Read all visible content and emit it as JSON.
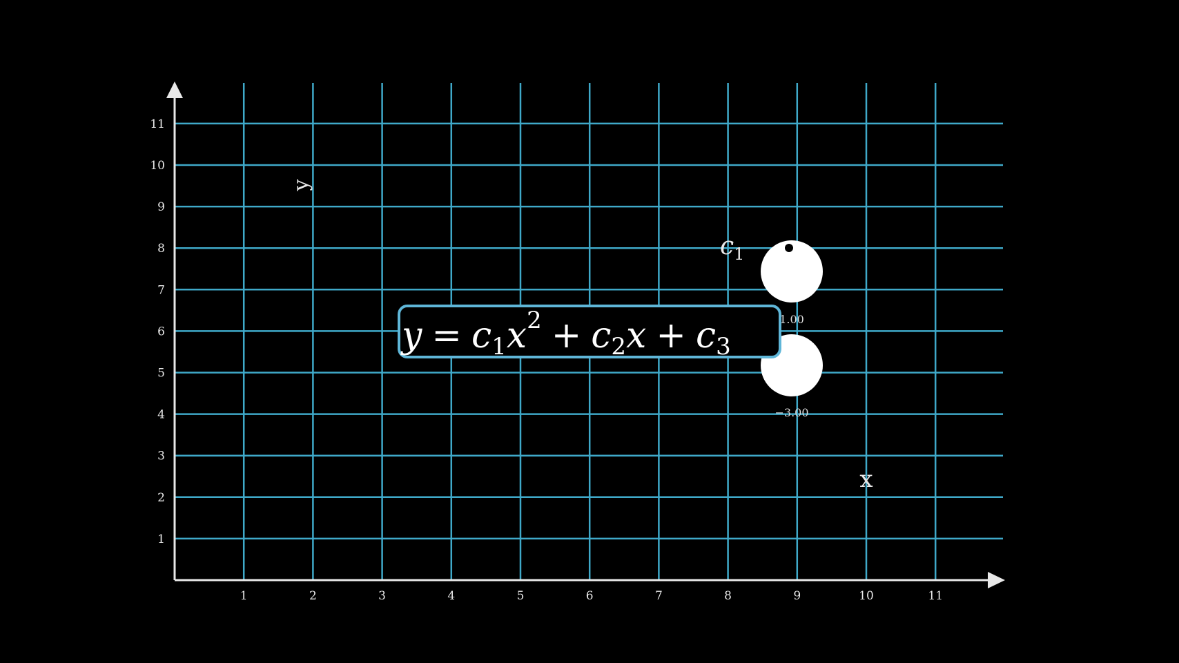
{
  "axes": {
    "x_label": "x",
    "y_label": "y",
    "x_ticks": [
      "1",
      "2",
      "3",
      "4",
      "5",
      "6",
      "7",
      "8",
      "9",
      "10",
      "11"
    ],
    "y_ticks": [
      "1",
      "2",
      "3",
      "4",
      "5",
      "6",
      "7",
      "8",
      "9",
      "10",
      "11"
    ]
  },
  "equation": {
    "y": "y",
    "equals": "=",
    "c1": "c",
    "c1_sub": "1",
    "x1": "x",
    "exp": "2",
    "plus1": "+",
    "c2": "c",
    "c2_sub": "2",
    "x2": "x",
    "plus2": "+",
    "c3": "c",
    "c3_sub": "3"
  },
  "control": {
    "name": "c",
    "name_sub": "1",
    "top_value": "1.00",
    "bottom_value": "−3.00"
  },
  "colors": {
    "background": "#000000",
    "grid": "#3fa9c9",
    "axis": "#e8e8e8",
    "text": "#e8e8e8",
    "knob": "#ffffff"
  }
}
